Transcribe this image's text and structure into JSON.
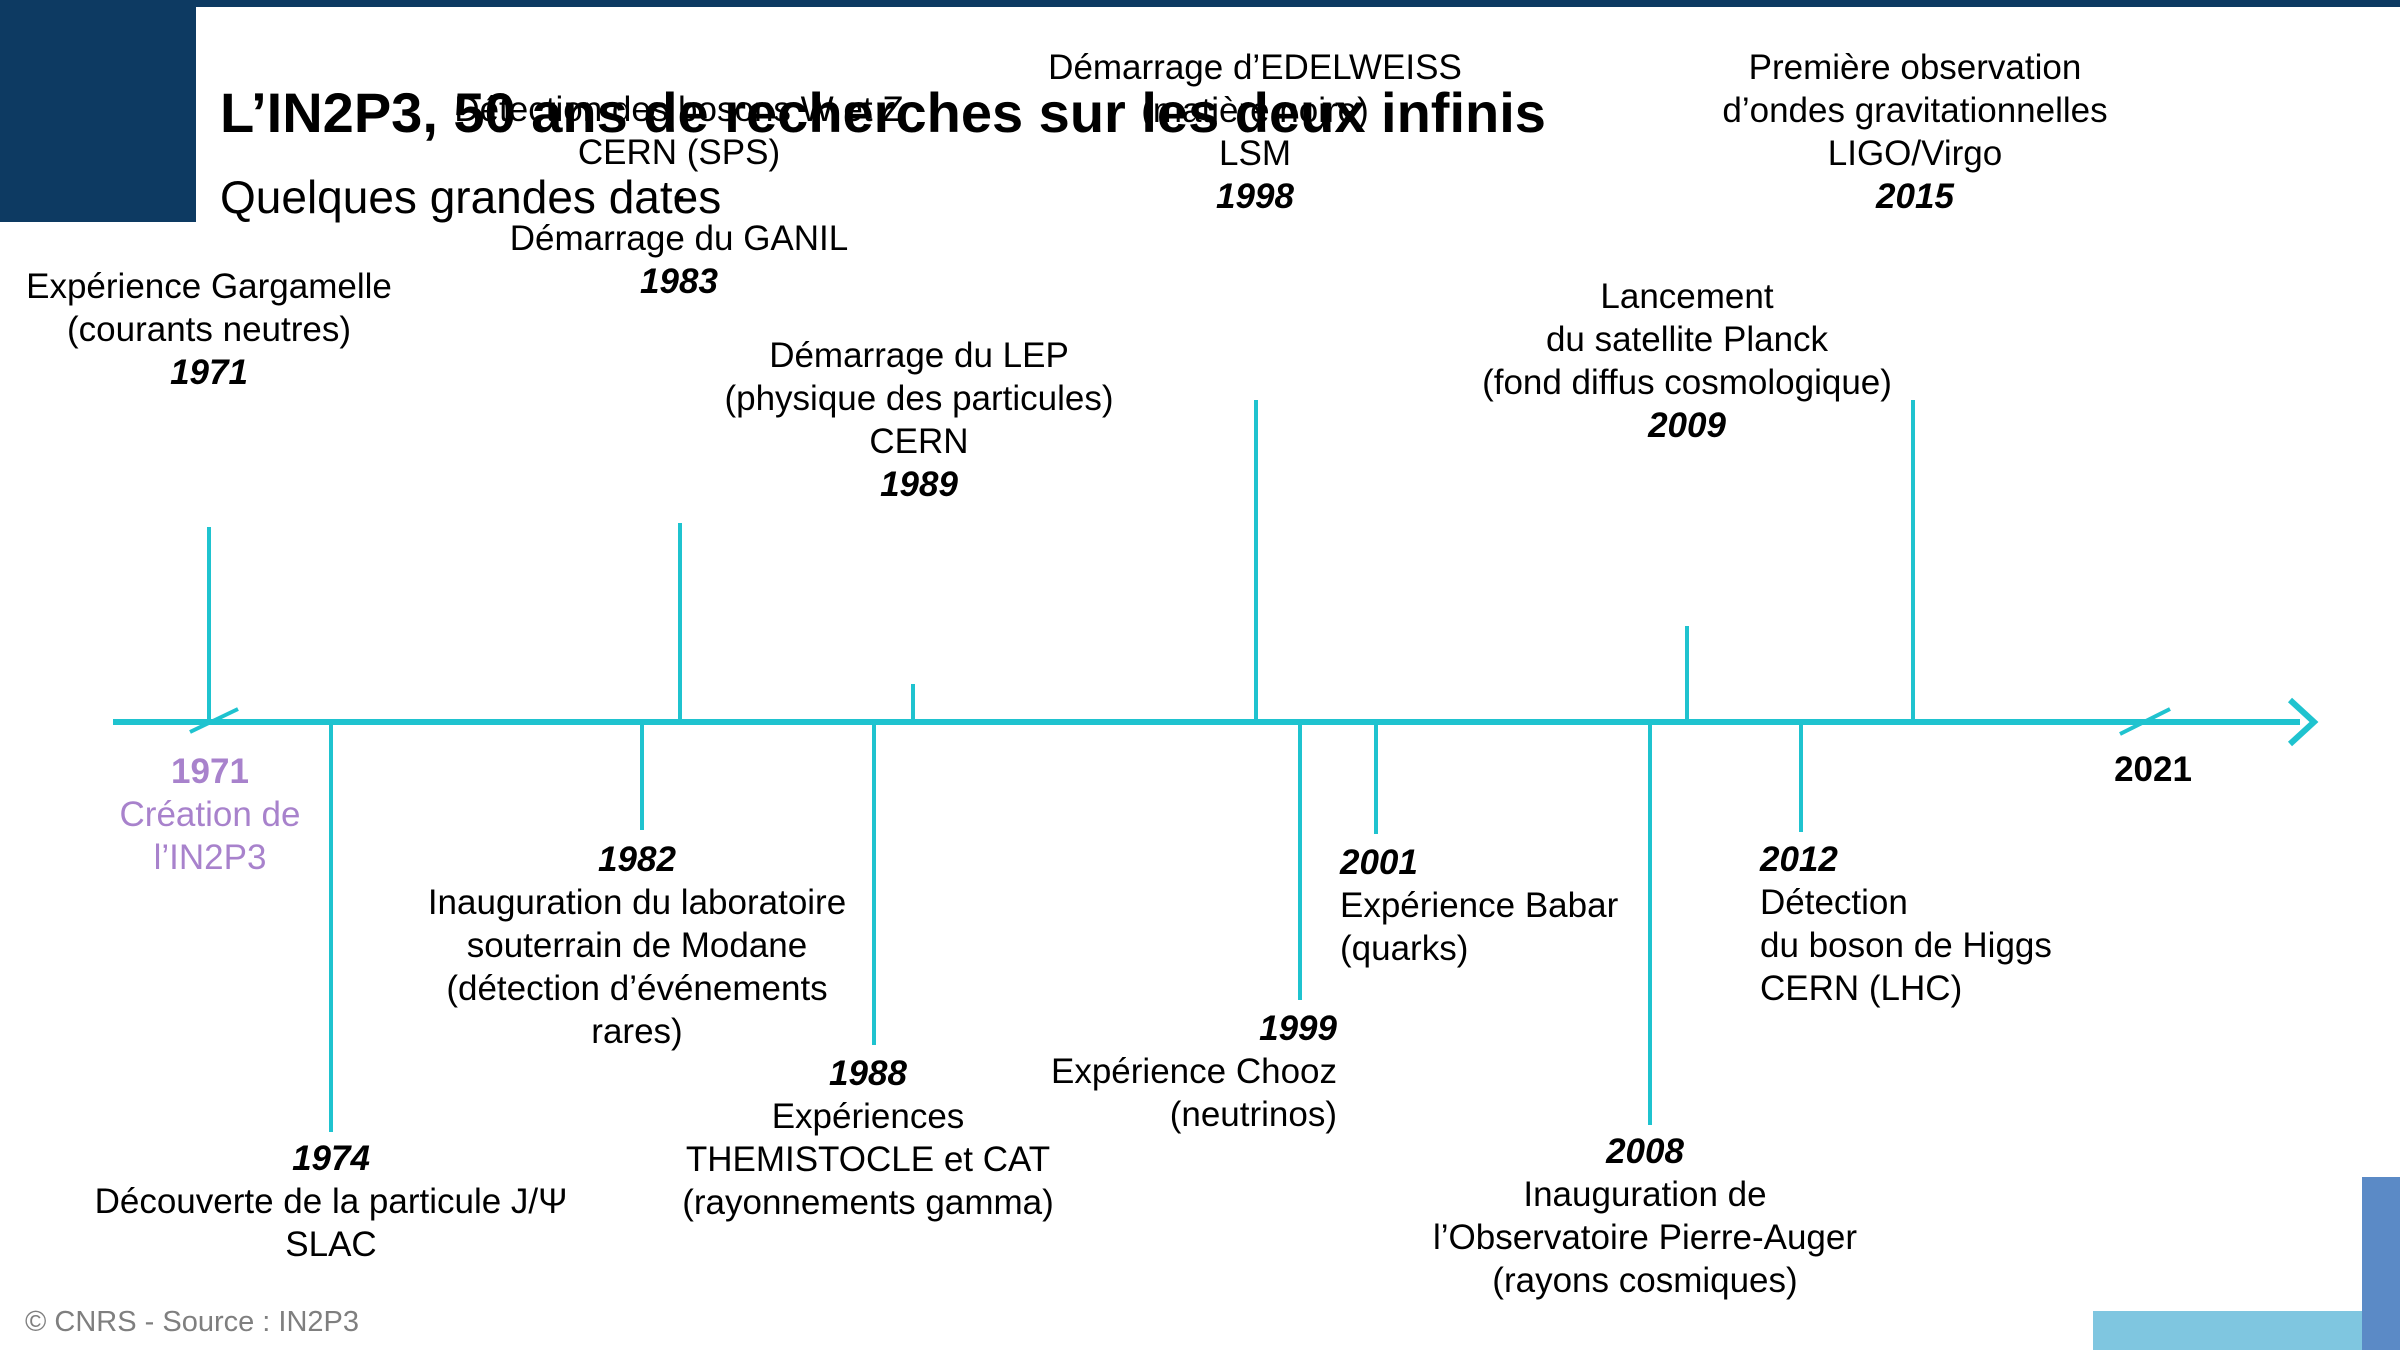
{
  "title": "L’IN2P3, 50 ans de recherches sur les deux infinis",
  "subtitle": "Quelques grandes dates",
  "footer": "© CNRS - Source : IN2P3",
  "colors": {
    "navy": "#0d3a62",
    "teal": "#1fc3cf",
    "purple": "#a882cc",
    "deco_blue": "#5b8ac6",
    "deco_light": "#7fc6e0"
  },
  "timeline": {
    "origin": {
      "year": "1971",
      "line1": "Création de",
      "line2": "l’IN2P3"
    },
    "end_year": "2021",
    "events": [
      {
        "id": "1971",
        "year": "1971",
        "side": "above",
        "align": "c",
        "lines": [
          "Expérience Gargamelle",
          "(courants neutres)"
        ]
      },
      {
        "id": "1974",
        "year": "1974",
        "side": "below",
        "align": "c",
        "lines": [
          "Découverte de la particule J/Ψ",
          "SLAC"
        ]
      },
      {
        "id": "1982",
        "year": "1982",
        "side": "below",
        "align": "c",
        "lines": [
          "Inauguration du laboratoire",
          "souterrain de Modane",
          "(détection d’événements",
          "rares)"
        ]
      },
      {
        "id": "1983",
        "year": "1983",
        "side": "above",
        "align": "c",
        "lines": [
          "Détection des bosons W et Z",
          "CERN (SPS)",
          "-",
          "Démarrage du GANIL"
        ]
      },
      {
        "id": "1988",
        "year": "1988",
        "side": "below",
        "align": "c",
        "lines": [
          "Expériences",
          "THEMISTOCLE et CAT",
          "(rayonnements gamma)"
        ]
      },
      {
        "id": "1989",
        "year": "1989",
        "side": "above",
        "align": "c",
        "lines": [
          "Démarrage du LEP",
          "(physique des particules)",
          "CERN"
        ]
      },
      {
        "id": "1998",
        "year": "1998",
        "side": "above",
        "align": "c",
        "lines": [
          "Démarrage d’EDELWEISS",
          "(matière noire)",
          "LSM"
        ]
      },
      {
        "id": "1999",
        "year": "1999",
        "side": "below",
        "align": "r",
        "lines": [
          "Expérience Chooz",
          "(neutrinos)"
        ]
      },
      {
        "id": "2001",
        "year": "2001",
        "side": "below",
        "align": "l",
        "lines": [
          "Expérience Babar",
          "(quarks)"
        ]
      },
      {
        "id": "2008",
        "year": "2008",
        "side": "below",
        "align": "c",
        "lines": [
          "Inauguration de",
          "l’Observatoire Pierre-Auger",
          "(rayons cosmiques)"
        ]
      },
      {
        "id": "2009",
        "year": "2009",
        "side": "above",
        "align": "c",
        "lines": [
          "Lancement",
          "du satellite Planck",
          "(fond diffus cosmologique)"
        ]
      },
      {
        "id": "2012",
        "year": "2012",
        "side": "below",
        "align": "l",
        "lines": [
          "Détection",
          "du boson de Higgs",
          "CERN (LHC)"
        ]
      },
      {
        "id": "2015",
        "year": "2015",
        "side": "above",
        "align": "c",
        "lines": [
          "Première observation",
          "d’ondes gravitationnelles",
          "LIGO/Virgo"
        ]
      }
    ]
  }
}
